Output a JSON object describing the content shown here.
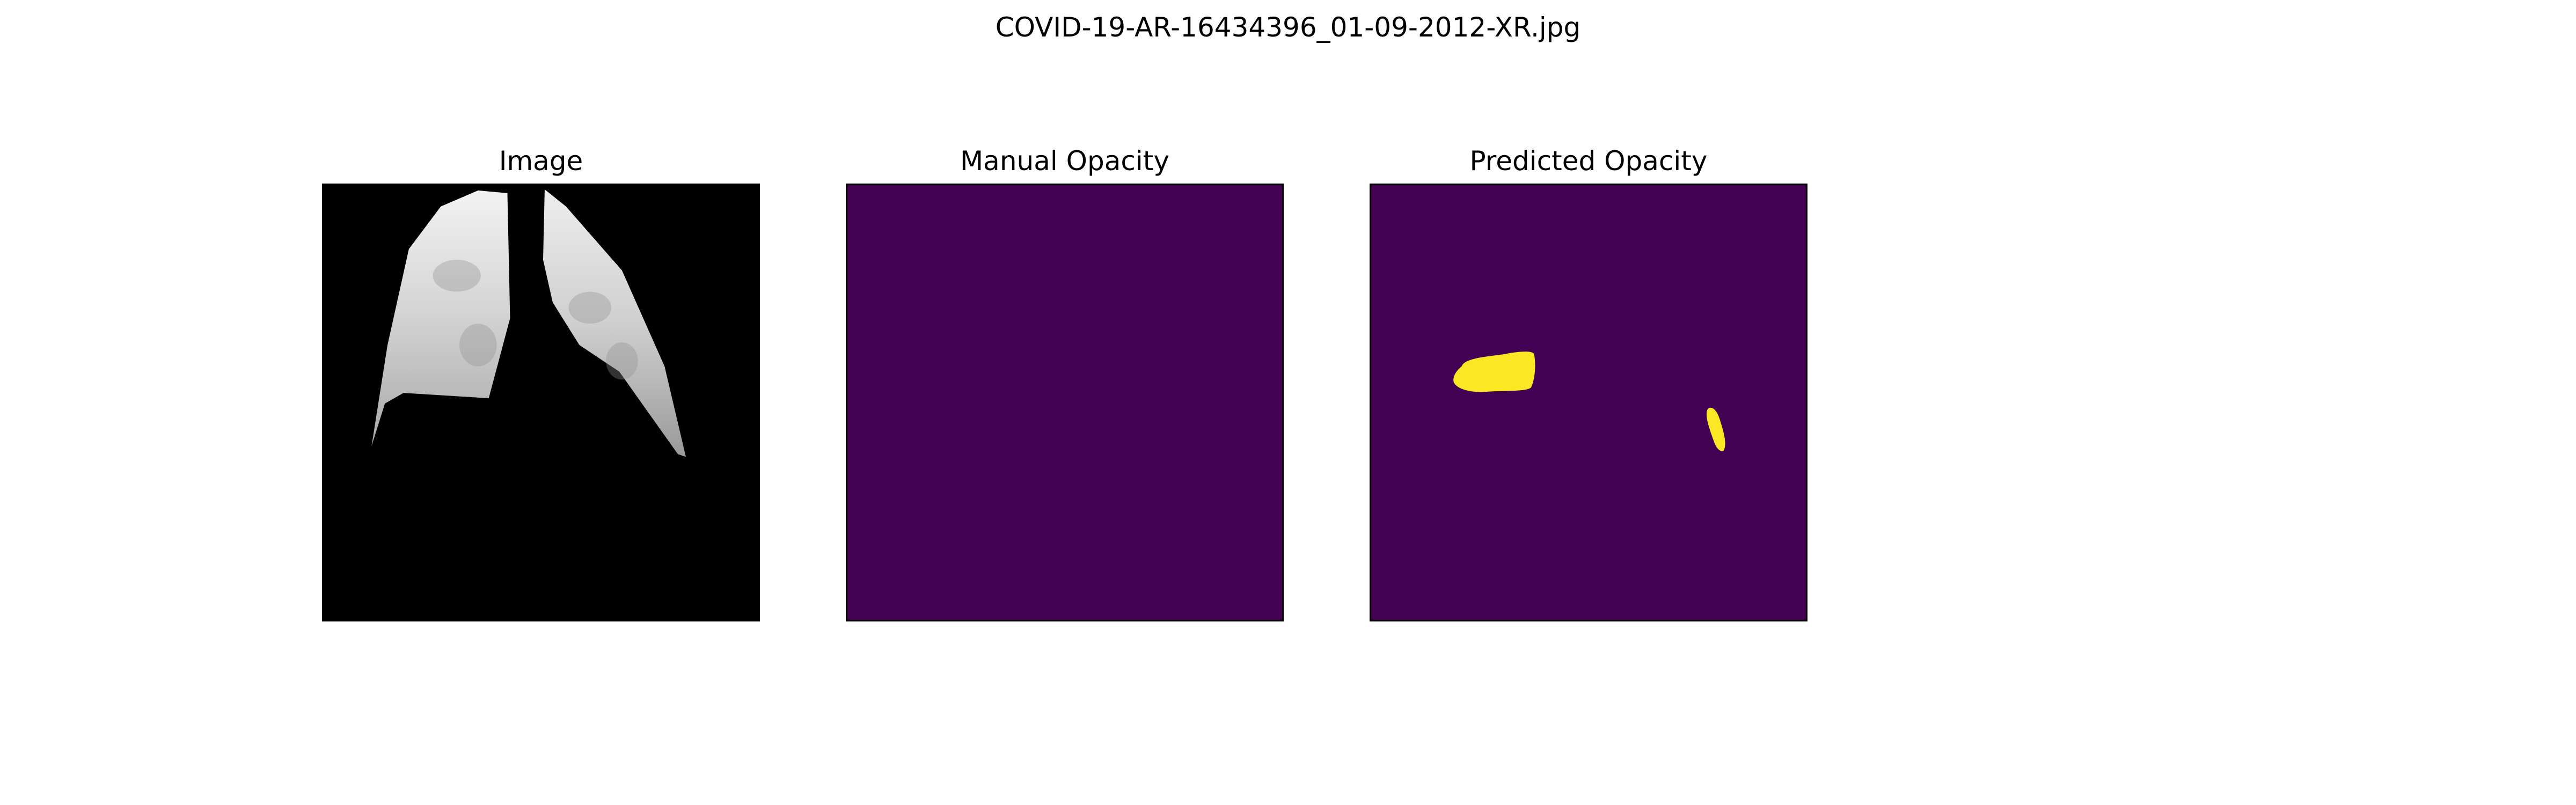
{
  "figure": {
    "title": "COVID-19-AR-16434396_01-09-2012-XR.jpg"
  },
  "panels": [
    {
      "title": "Image",
      "content": "chest-xray-lung-segmentation"
    },
    {
      "title": "Manual Opacity",
      "content": "empty-mask"
    },
    {
      "title": "Predicted Opacity",
      "content": "predicted-mask-two-regions"
    }
  ],
  "colors": {
    "background": "#ffffff",
    "xray_background": "#000000",
    "mask_background": "#440154",
    "mask_foreground": "#fde725"
  }
}
